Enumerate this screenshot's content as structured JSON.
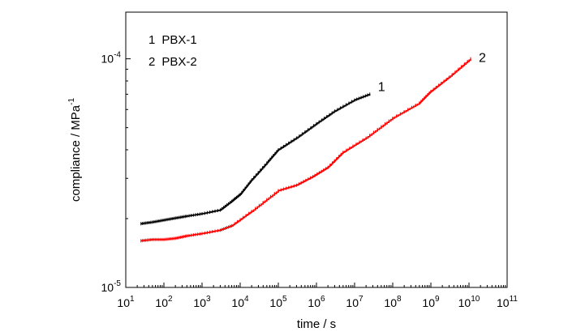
{
  "chart_data": {
    "type": "line",
    "xscale": "log",
    "yscale": "log",
    "xlabel": "time / s",
    "ylabel": {
      "main": "compliance / MPa",
      "exponent": "-1"
    },
    "xlim": [
      10,
      100000000000
    ],
    "ylim": [
      1e-05,
      0.00016
    ],
    "grid": false,
    "legend_position": "top-left",
    "x_ticks": [
      {
        "value": 10,
        "base": "10",
        "exp": "1"
      },
      {
        "value": 100,
        "base": "10",
        "exp": "2"
      },
      {
        "value": 1000,
        "base": "10",
        "exp": "3"
      },
      {
        "value": 10000,
        "base": "10",
        "exp": "4"
      },
      {
        "value": 100000,
        "base": "10",
        "exp": "5"
      },
      {
        "value": 1000000,
        "base": "10",
        "exp": "6"
      },
      {
        "value": 10000000,
        "base": "10",
        "exp": "7"
      },
      {
        "value": 100000000,
        "base": "10",
        "exp": "8"
      },
      {
        "value": 1000000000,
        "base": "10",
        "exp": "9"
      },
      {
        "value": 10000000000,
        "base": "10",
        "exp": "10"
      },
      {
        "value": 100000000000,
        "base": "10",
        "exp": "11"
      }
    ],
    "y_ticks": [
      {
        "value": 1e-05,
        "base": "10",
        "exp": "-5"
      },
      {
        "value": 0.0001,
        "base": "10",
        "exp": "-4"
      }
    ],
    "legend": [
      {
        "number": "1",
        "label": "PBX-1"
      },
      {
        "number": "2",
        "label": "PBX-2"
      }
    ],
    "series": [
      {
        "name": "PBX-1",
        "label": "1",
        "color": "#000000",
        "x": [
          25,
          50,
          100,
          200,
          400,
          1000,
          3000,
          6000,
          10000,
          20000,
          50000,
          100000,
          300000,
          1000000,
          3000000,
          10000000,
          25000000
        ],
        "y": [
          1.9e-05,
          1.93e-05,
          1.97e-05,
          2.01e-05,
          2.05e-05,
          2.1e-05,
          2.18e-05,
          2.38e-05,
          2.55e-05,
          2.95e-05,
          3.5e-05,
          4e-05,
          4.5e-05,
          5.2e-05,
          5.9e-05,
          6.6e-05,
          7e-05
        ]
      },
      {
        "name": "PBX-2",
        "label": "2",
        "color": "#ff0000",
        "x": [
          25,
          50,
          100,
          200,
          400,
          1000,
          3000,
          6000,
          20000,
          100000,
          300000,
          800000,
          2000000,
          5000000,
          20000000,
          100000000,
          500000000,
          1000000000,
          3000000000,
          11000000000
        ],
        "y": [
          1.6e-05,
          1.62e-05,
          1.62e-05,
          1.64e-05,
          1.68e-05,
          1.72e-05,
          1.78e-05,
          1.86e-05,
          2.15e-05,
          2.65e-05,
          2.8e-05,
          3.05e-05,
          3.35e-05,
          3.9e-05,
          4.5e-05,
          5.5e-05,
          6.4e-05,
          7.2e-05,
          8.3e-05,
          0.0001
        ]
      }
    ]
  }
}
